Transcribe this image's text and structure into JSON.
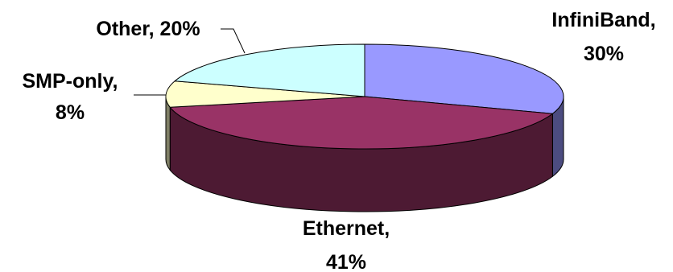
{
  "chart_data": {
    "type": "pie",
    "style": "3d-exploded-off",
    "slices": [
      {
        "label": "InfiniBand",
        "value": 30,
        "color": "#9999ff",
        "side_color": "#4c4c80"
      },
      {
        "label": "Ethernet",
        "value": 41,
        "color": "#993366",
        "side_color": "#4d1a33"
      },
      {
        "label": "SMP-only",
        "value": 8,
        "color": "#ffffcc",
        "side_color": "#808066"
      },
      {
        "label": "Other",
        "value": 20,
        "color": "#ccffff",
        "side_color": "#668080"
      }
    ],
    "data_labels": [
      {
        "slice": "InfiniBand",
        "lines": [
          "InfiniBand,",
          "30%"
        ]
      },
      {
        "slice": "Ethernet",
        "lines": [
          "Ethernet,",
          "41%"
        ]
      },
      {
        "slice": "SMP-only",
        "lines": [
          "SMP-only,",
          "8%"
        ]
      },
      {
        "slice": "Other",
        "lines": [
          "Other, 20%"
        ]
      }
    ],
    "legend": "none",
    "title": ""
  }
}
